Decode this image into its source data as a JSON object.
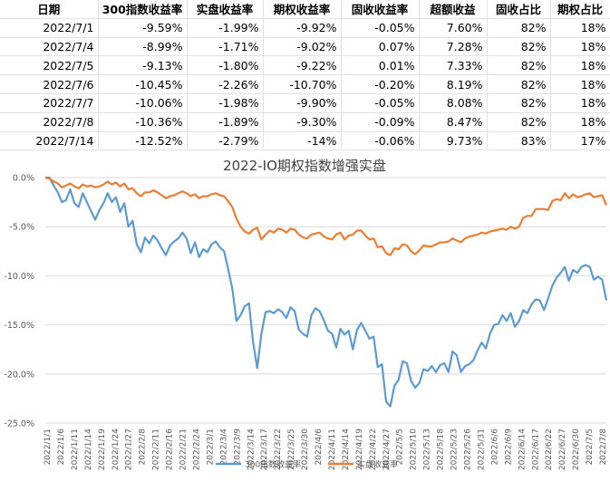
{
  "table": {
    "headers": [
      "日期",
      "300指数收益率",
      "实盘收益率",
      "期权收益率",
      "固收收益率",
      "超额收益",
      "固收占比",
      "期权占比"
    ],
    "rows": [
      [
        "2022/7/1",
        "-9.59%",
        "-1.99%",
        "-9.92%",
        "-0.05%",
        "7.60%",
        "82%",
        "18%"
      ],
      [
        "2022/7/4",
        "-8.99%",
        "-1.71%",
        "-9.02%",
        "0.07%",
        "7.28%",
        "82%",
        "18%"
      ],
      [
        "2022/7/5",
        "-9.13%",
        "-1.80%",
        "-9.22%",
        "0.01%",
        "7.33%",
        "82%",
        "18%"
      ],
      [
        "2022/7/6",
        "-10.45%",
        "-2.26%",
        "-10.70%",
        "-0.20%",
        "8.19%",
        "82%",
        "18%"
      ],
      [
        "2022/7/7",
        "-10.06%",
        "-1.98%",
        "-9.90%",
        "-0.05%",
        "8.08%",
        "82%",
        "18%"
      ],
      [
        "2022/7/8",
        "-10.36%",
        "-1.89%",
        "-9.30%",
        "-0.09%",
        "8.47%",
        "82%",
        "18%"
      ],
      [
        "2022/7/14",
        "-12.52%",
        "-2.79%",
        "-14%",
        "-0.06%",
        "9.73%",
        "83%",
        "17%"
      ]
    ]
  },
  "chart_data": {
    "type": "line",
    "title": "2022-IO期权指数增强实盘",
    "xlabel": "",
    "ylabel": "",
    "ylim": [
      -25,
      0
    ],
    "yticks": [
      "0.0%",
      "-5.0%",
      "-10.0%",
      "-15.0%",
      "-20.0%",
      "-25.0%"
    ],
    "grid": "horizontal",
    "legend_placement": "bottom",
    "xtick_labels": [
      "2022/1/1",
      "2022/1/6",
      "2022/1/11",
      "2022/1/14",
      "2022/1/19",
      "2022/1/24",
      "2022/1/27",
      "2022/2/8",
      "2022/2/11",
      "2022/2/16",
      "2022/2/21",
      "2022/2/24",
      "2022/3/1",
      "2022/3/4",
      "2022/3/9",
      "2022/3/14",
      "2022/3/17",
      "2022/3/22",
      "2022/3/25",
      "2022/3/30",
      "2022/4/6",
      "2022/4/11",
      "2022/4/14",
      "2022/4/19",
      "2022/4/22",
      "2022/4/27",
      "2022/5/5",
      "2022/5/10",
      "2022/5/13",
      "2022/5/18",
      "2022/5/23",
      "2022/5/26",
      "2022/5/31",
      "2022/6/6",
      "2022/6/9",
      "2022/6/14",
      "2022/6/17",
      "2022/6/22",
      "2022/6/27",
      "2022/6/30",
      "2022/7/5",
      "2022/7/8"
    ],
    "series": [
      {
        "name": "300指数收益率",
        "color": "#5b9bd5",
        "values": [
          0.0,
          0.0,
          -0.8,
          -1.5,
          -2.5,
          -2.3,
          -1.2,
          -2.6,
          -3.0,
          -1.6,
          -2.5,
          -3.4,
          -4.3,
          -3.3,
          -2.6,
          -1.6,
          -2.5,
          -2.0,
          -3.5,
          -2.6,
          -5.0,
          -4.4,
          -6.8,
          -7.6,
          -6.1,
          -6.7,
          -5.9,
          -6.4,
          -7.2,
          -7.9,
          -6.9,
          -6.5,
          -6.2,
          -5.6,
          -6.2,
          -7.7,
          -6.6,
          -8.1,
          -7.3,
          -7.6,
          -6.8,
          -6.5,
          -7.1,
          -7.5,
          -9.3,
          -11.3,
          -14.6,
          -14.0,
          -13.1,
          -12.8,
          -16.8,
          -19.4,
          -15.9,
          -13.7,
          -13.6,
          -13.8,
          -13.4,
          -13.7,
          -14.3,
          -13.2,
          -13.6,
          -15.5,
          -15.9,
          -16.2,
          -14.0,
          -13.3,
          -13.6,
          -14.5,
          -15.6,
          -15.9,
          -17.3,
          -15.4,
          -16.0,
          -15.6,
          -17.5,
          -15.5,
          -14.8,
          -15.6,
          -16.4,
          -16.2,
          -19.3,
          -19.0,
          -22.8,
          -23.3,
          -21.2,
          -20.6,
          -18.7,
          -18.9,
          -20.7,
          -21.4,
          -20.9,
          -19.5,
          -19.7,
          -19.2,
          -19.8,
          -19.1,
          -18.9,
          -19.8,
          -17.7,
          -18.1,
          -19.8,
          -19.2,
          -19.0,
          -18.6,
          -17.6,
          -16.8,
          -17.4,
          -15.9,
          -15.0,
          -14.9,
          -14.0,
          -14.6,
          -13.8,
          -15.2,
          -14.6,
          -13.5,
          -13.8,
          -12.9,
          -12.4,
          -12.5,
          -13.5,
          -12.3,
          -11.0,
          -10.2,
          -9.7,
          -9.1,
          -10.5,
          -9.4,
          -9.7,
          -9.1,
          -8.9,
          -9.1,
          -10.4,
          -10.1,
          -10.4,
          -12.5
        ]
      },
      {
        "name": "实盘收益率",
        "color": "#ed7d31",
        "values": [
          0.0,
          -0.1,
          -0.4,
          -0.6,
          -1.0,
          -0.8,
          -0.6,
          -0.9,
          -1.1,
          -0.7,
          -0.9,
          -0.8,
          -1.0,
          -0.9,
          -0.7,
          -0.4,
          -0.7,
          -0.5,
          -0.9,
          -0.6,
          -1.2,
          -1.1,
          -1.6,
          -1.9,
          -1.5,
          -1.5,
          -1.3,
          -1.5,
          -1.8,
          -2.1,
          -1.9,
          -1.8,
          -1.6,
          -1.4,
          -1.6,
          -1.9,
          -1.7,
          -2.1,
          -1.9,
          -1.9,
          -1.7,
          -1.6,
          -1.8,
          -1.9,
          -2.4,
          -3.0,
          -4.2,
          -5.0,
          -5.5,
          -5.7,
          -5.3,
          -5.1,
          -6.3,
          -5.8,
          -5.4,
          -5.6,
          -5.2,
          -5.3,
          -5.6,
          -5.2,
          -5.3,
          -5.8,
          -6.1,
          -6.2,
          -5.8,
          -5.7,
          -5.6,
          -6.0,
          -6.2,
          -6.3,
          -5.8,
          -5.6,
          -6.3,
          -5.9,
          -5.8,
          -5.4,
          -5.4,
          -5.9,
          -6.3,
          -6.2,
          -7.1,
          -7.0,
          -7.7,
          -7.9,
          -7.2,
          -7.3,
          -6.8,
          -6.9,
          -7.5,
          -7.8,
          -7.4,
          -6.9,
          -7.0,
          -7.0,
          -6.8,
          -6.6,
          -6.6,
          -6.5,
          -6.2,
          -6.4,
          -6.6,
          -6.2,
          -6.0,
          -5.9,
          -5.8,
          -5.6,
          -5.7,
          -5.5,
          -5.4,
          -5.3,
          -5.2,
          -5.3,
          -5.0,
          -5.2,
          -5.0,
          -4.1,
          -3.9,
          -3.9,
          -3.2,
          -3.2,
          -3.2,
          -3.3,
          -2.4,
          -2.2,
          -2.3,
          -1.6,
          -2.1,
          -1.7,
          -2.0,
          -1.9,
          -1.7,
          -1.6,
          -2.0,
          -1.9,
          -1.8,
          -2.8
        ]
      }
    ]
  }
}
